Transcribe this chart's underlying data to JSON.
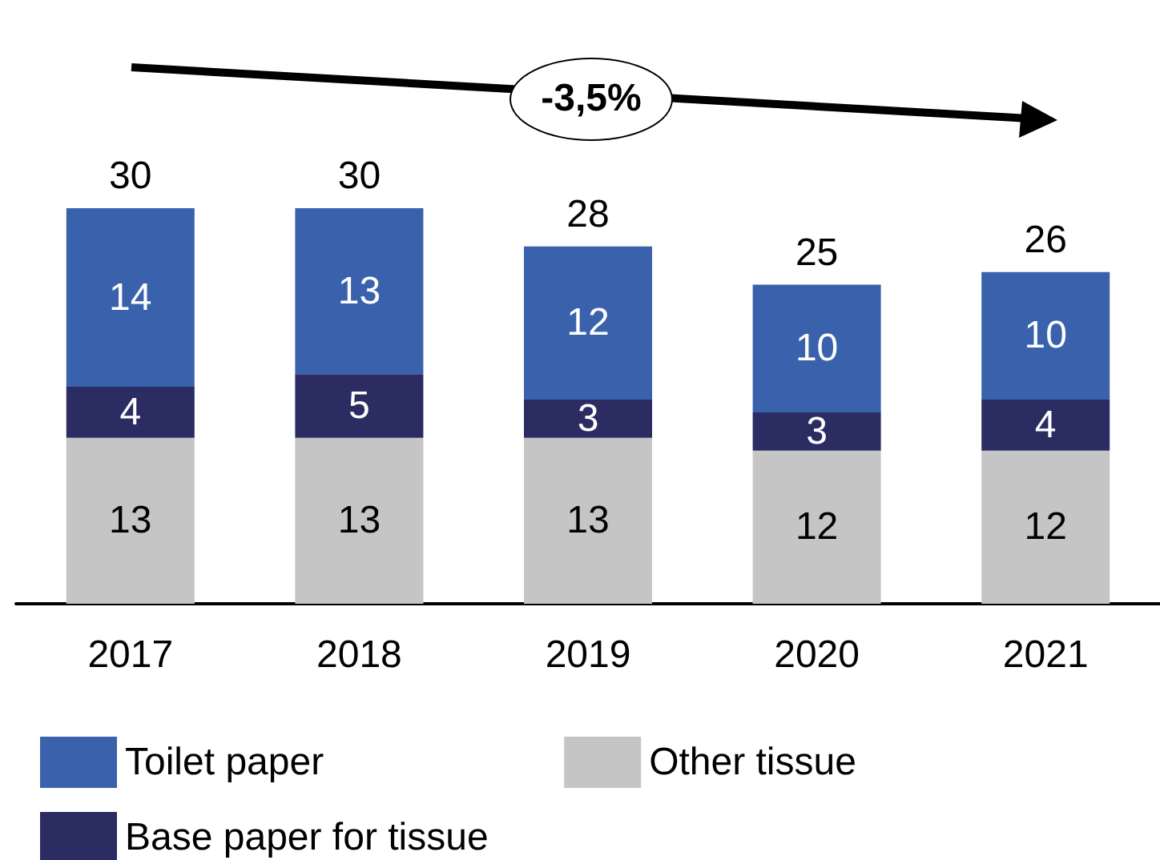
{
  "chart_data": {
    "type": "bar",
    "stacked": true,
    "categories": [
      "2017",
      "2018",
      "2019",
      "2020",
      "2021"
    ],
    "series": [
      {
        "name": "Other tissue",
        "color": "#c4c5c4",
        "values": [
          13,
          13,
          13,
          12,
          12
        ]
      },
      {
        "name": "Base paper for tissue",
        "color": "#2a2c62",
        "values": [
          4,
          5,
          3,
          3,
          4
        ]
      },
      {
        "name": "Toilet paper",
        "color": "#3a62ac",
        "values": [
          14,
          13,
          12,
          10,
          10
        ]
      }
    ],
    "totals": [
      "30",
      "30",
      "28",
      "25",
      "26"
    ],
    "data_labels": true,
    "legend": "bottom",
    "annotations": [
      "-3,5%"
    ]
  }
}
